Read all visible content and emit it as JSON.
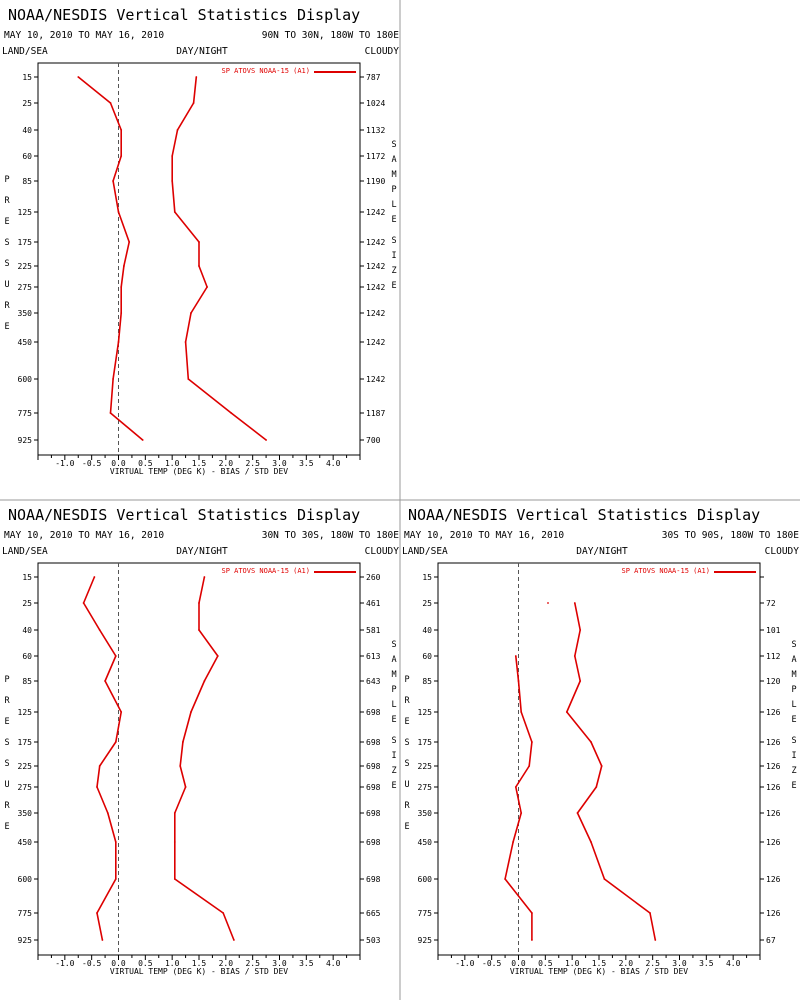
{
  "colors": {
    "series": "#dd0000",
    "axes": "#000000",
    "divider": "#9a9a9a",
    "zero_line": "#555555"
  },
  "chart_data": [
    {
      "type": "line",
      "title": "NOAA/NESDIS Vertical Statistics Display",
      "date_range": "MAY 10, 2010 TO MAY 16, 2010",
      "region": "90N TO 30N, 180W TO 180E",
      "surface": "LAND/SEA",
      "time_of_day": "DAY/NIGHT",
      "sky": "CLOUDY",
      "legend": "SP ATOVS NOAA-15 (A1)",
      "xlabel": "VIRTUAL TEMP (DEG K) - BIAS / STD DEV",
      "ylabel": "PRESSURE",
      "y2label": "SAMPLE SIZE",
      "xlim": [
        -1.5,
        4.5
      ],
      "x_ticks": [
        "-1.0",
        "-0.5",
        "0.0",
        "0.5",
        "1.0",
        "1.5",
        "2.0",
        "2.5",
        "3.0",
        "3.5",
        "4.0"
      ],
      "pressure_levels": [
        "15",
        "25",
        "40",
        "60",
        "85",
        "125",
        "175",
        "225",
        "275",
        "350",
        "450",
        "600",
        "775",
        "925"
      ],
      "sample_size": [
        "787",
        "1024",
        "1132",
        "1172",
        "1190",
        "1242",
        "1242",
        "1242",
        "1242",
        "1242",
        "1242",
        "1242",
        "1187",
        "700"
      ],
      "series": [
        {
          "values": [
            -0.75,
            -0.15,
            0.05,
            0.05,
            -0.1,
            0.0,
            0.2,
            0.1,
            0.05,
            0.05,
            0.0,
            -0.1,
            -0.15,
            0.45
          ]
        },
        {
          "values": [
            1.45,
            1.4,
            1.1,
            1.0,
            1.0,
            1.05,
            1.5,
            1.5,
            1.65,
            1.35,
            1.25,
            1.3,
            2.1,
            2.75
          ]
        }
      ]
    },
    {
      "type": "line",
      "title": "NOAA/NESDIS Vertical Statistics Display",
      "date_range": "MAY 10, 2010 TO MAY 16, 2010",
      "region": "30N TO 30S, 180W TO 180E",
      "surface": "LAND/SEA",
      "time_of_day": "DAY/NIGHT",
      "sky": "CLOUDY",
      "legend": "SP ATOVS NOAA-15 (A1)",
      "xlabel": "VIRTUAL TEMP (DEG K) - BIAS / STD DEV",
      "ylabel": "PRESSURE",
      "y2label": "SAMPLE SIZE",
      "xlim": [
        -1.5,
        4.5
      ],
      "x_ticks": [
        "-1.0",
        "-0.5",
        "0.0",
        "0.5",
        "1.0",
        "1.5",
        "2.0",
        "2.5",
        "3.0",
        "3.5",
        "4.0"
      ],
      "pressure_levels": [
        "15",
        "25",
        "40",
        "60",
        "85",
        "125",
        "175",
        "225",
        "275",
        "350",
        "450",
        "600",
        "775",
        "925"
      ],
      "sample_size": [
        "260",
        "461",
        "581",
        "613",
        "643",
        "698",
        "698",
        "698",
        "698",
        "698",
        "698",
        "698",
        "665",
        "503"
      ],
      "series": [
        {
          "values": [
            -0.45,
            -0.65,
            -0.35,
            -0.05,
            -0.25,
            0.05,
            -0.05,
            -0.35,
            -0.4,
            -0.2,
            -0.05,
            -0.05,
            -0.4,
            -0.3
          ]
        },
        {
          "values": [
            1.6,
            1.5,
            1.5,
            1.85,
            1.6,
            1.35,
            1.2,
            1.15,
            1.25,
            1.05,
            1.05,
            1.05,
            1.95,
            2.15
          ]
        }
      ]
    },
    {
      "type": "line",
      "title": "NOAA/NESDIS Vertical Statistics Display",
      "date_range": "MAY 10, 2010 TO MAY 16, 2010",
      "region": "30S TO 90S, 180W TO 180E",
      "surface": "LAND/SEA",
      "time_of_day": "DAY/NIGHT",
      "sky": "CLOUDY",
      "legend": "SP ATOVS NOAA-15 (A1)",
      "xlabel": "VIRTUAL TEMP (DEG K) - BIAS / STD DEV",
      "ylabel": "PRESSURE",
      "y2label": "SAMPLE SIZE",
      "xlim": [
        -1.5,
        4.5
      ],
      "x_ticks": [
        "-1.0",
        "-0.5",
        "0.0",
        "0.5",
        "1.0",
        "1.5",
        "2.0",
        "2.5",
        "3.0",
        "3.5",
        "4.0"
      ],
      "pressure_levels": [
        "15",
        "25",
        "40",
        "60",
        "85",
        "125",
        "175",
        "225",
        "275",
        "350",
        "450",
        "600",
        "775",
        "925"
      ],
      "sample_size": [
        "",
        "72",
        "101",
        "112",
        "120",
        "126",
        "126",
        "126",
        "126",
        "126",
        "126",
        "126",
        "126",
        "67"
      ],
      "series": [
        {
          "values": [
            null,
            0.55,
            null,
            -0.05,
            0.0,
            0.05,
            0.25,
            0.2,
            -0.05,
            0.05,
            -0.1,
            -0.25,
            0.25,
            0.25
          ]
        },
        {
          "values": [
            null,
            1.05,
            1.15,
            1.05,
            1.15,
            0.9,
            1.35,
            1.55,
            1.45,
            1.1,
            1.35,
            1.6,
            2.45,
            2.55
          ]
        }
      ]
    }
  ]
}
